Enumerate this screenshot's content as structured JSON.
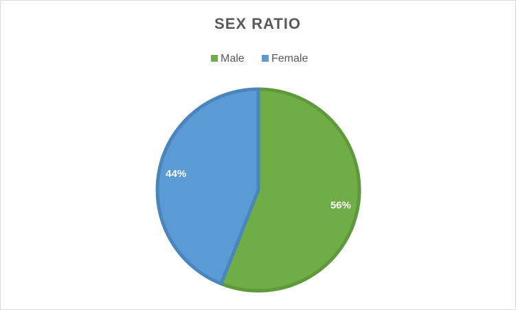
{
  "chart_data": {
    "type": "pie",
    "title": "SEX RATIO",
    "categories": [
      "Male",
      "Female"
    ],
    "values": [
      56,
      44
    ],
    "value_labels": [
      "56%",
      "44%"
    ],
    "colors": [
      "#70ad47",
      "#5b9bd5"
    ],
    "border_colors": [
      "#5e9a3a",
      "#4a86bd"
    ],
    "legend": "top"
  }
}
